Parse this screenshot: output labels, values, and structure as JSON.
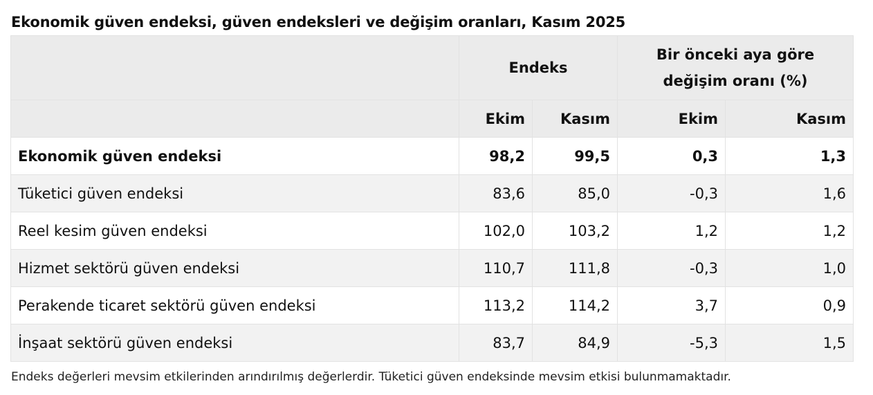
{
  "title": "Ekonomik güven endeksi, güven endeksleri ve değişim oranları, Kasım 2025",
  "table": {
    "header": {
      "group_index": "Endeks",
      "group_change": "Bir önceki aya göre değişim oranı (%)",
      "col_ekim_1": "Ekim",
      "col_kasim_1": "Kasım",
      "col_ekim_2": "Ekim",
      "col_kasim_2": "Kasım"
    },
    "rows": [
      {
        "label": "Ekonomik güven endeksi",
        "ekim": "98,2",
        "kasim": "99,5",
        "chg_ekim": "0,3",
        "chg_kasim": "1,3"
      },
      {
        "label": "Tüketici güven endeksi",
        "ekim": "83,6",
        "kasim": "85,0",
        "chg_ekim": "-0,3",
        "chg_kasim": "1,6"
      },
      {
        "label": "Reel kesim güven endeksi",
        "ekim": "102,0",
        "kasim": "103,2",
        "chg_ekim": "1,2",
        "chg_kasim": "1,2"
      },
      {
        "label": "Hizmet sektörü güven endeksi",
        "ekim": "110,7",
        "kasim": "111,8",
        "chg_ekim": "-0,3",
        "chg_kasim": "1,0"
      },
      {
        "label": "Perakende ticaret sektörü güven endeksi",
        "ekim": "113,2",
        "kasim": "114,2",
        "chg_ekim": "3,7",
        "chg_kasim": "0,9"
      },
      {
        "label": "İnşaat sektörü güven endeksi",
        "ekim": "83,7",
        "kasim": "84,9",
        "chg_ekim": "-5,3",
        "chg_kasim": "1,5"
      }
    ]
  },
  "note": "Endeks değerleri mevsim etkilerinden arındırılmış değerlerdir. Tüketici güven endeksinde mevsim etkisi bulunmamaktadır."
}
